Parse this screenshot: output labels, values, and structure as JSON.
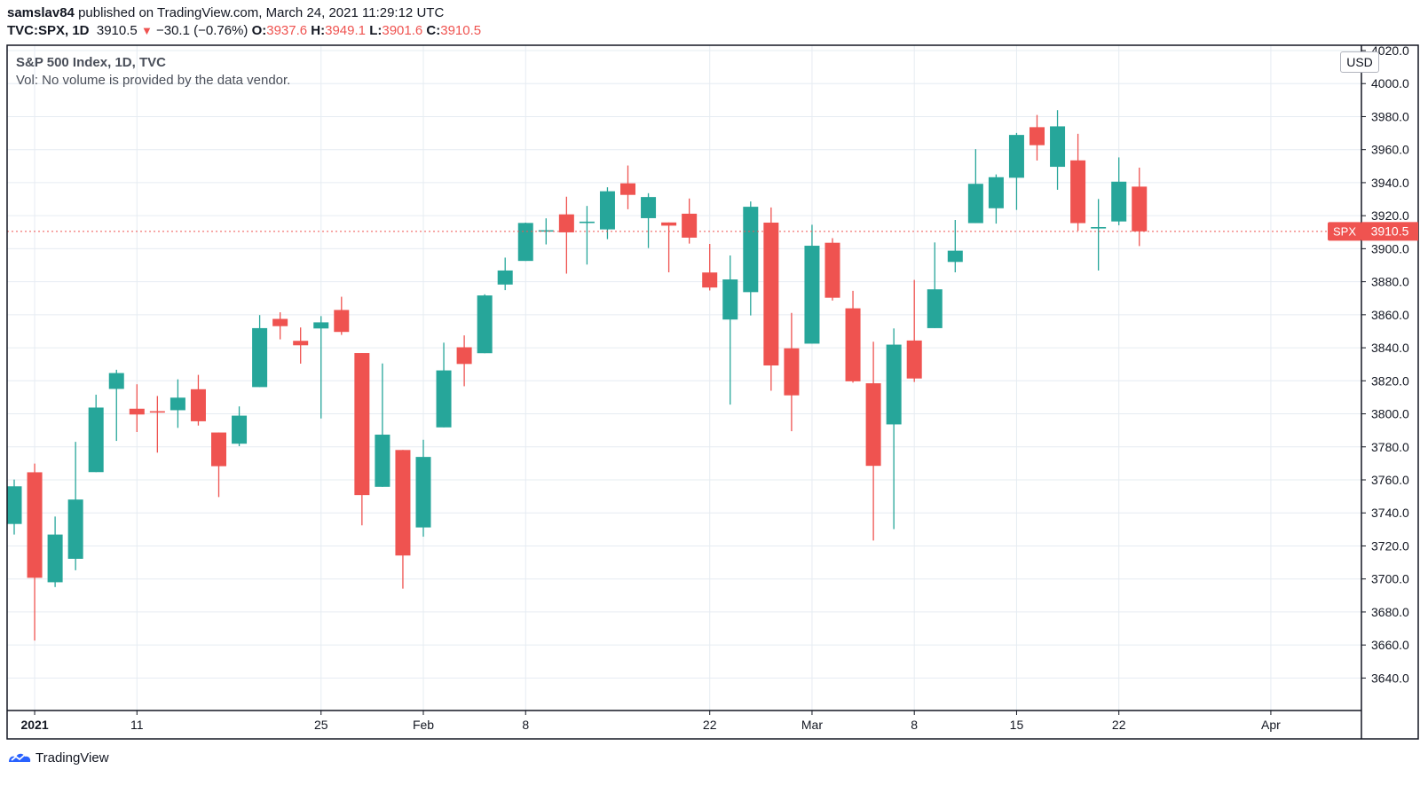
{
  "header": {
    "publisher": "samslav84",
    "published_text": "published on TradingView.com, March 24, 2021 11:29:12 UTC",
    "symbol": "TVC:SPX, 1D",
    "last": "3910.5",
    "change_icon": "down-triangle-icon",
    "change": "−30.1 (−0.76%)",
    "o_label": "O:",
    "o": "3937.6",
    "h_label": "H:",
    "h": "3949.1",
    "l_label": "L:",
    "l": "3901.6",
    "c_label": "C:",
    "c": "3910.5"
  },
  "legend": {
    "title": "S&P 500 Index, 1D, TVC",
    "volume_note": "Vol: No volume is provided by the data vendor."
  },
  "currency": "USD",
  "price_tag": {
    "symbol": "SPX",
    "value": "3910.5"
  },
  "branding": {
    "icon": "tradingview-logo-icon",
    "text": "TradingView"
  },
  "colors": {
    "up": "#26a69a",
    "down": "#ef5350",
    "grid": "#e6ecf2",
    "axis": "#131722",
    "last_line": "#ef5350"
  },
  "chart_data": {
    "type": "candlestick",
    "ylim": [
      3630,
      4020
    ],
    "y_ticks": [
      3640,
      3660,
      3680,
      3700,
      3720,
      3740,
      3760,
      3780,
      3800,
      3820,
      3840,
      3860,
      3880,
      3900,
      3920,
      3940,
      3960,
      3980,
      4000,
      4020
    ],
    "x_ticks": [
      {
        "label": "2021",
        "date": "2021-01-04",
        "bold": true
      },
      {
        "label": "11",
        "date": "2021-01-11"
      },
      {
        "label": "25",
        "date": "2021-01-25"
      },
      {
        "label": "Feb",
        "date": "2021-02-01"
      },
      {
        "label": "8",
        "date": "2021-02-08"
      },
      {
        "label": "22",
        "date": "2021-02-22"
      },
      {
        "label": "Mar",
        "date": "2021-03-01"
      },
      {
        "label": "8",
        "date": "2021-03-08"
      },
      {
        "label": "15",
        "date": "2021-03-15"
      },
      {
        "label": "22",
        "date": "2021-03-22"
      },
      {
        "label": "Apr",
        "date": "2021-04-01"
      }
    ],
    "last_price": 3910.5,
    "candles": [
      {
        "date": "2020-12-31",
        "open": 3733.3,
        "high": 3760.2,
        "low": 3726.9,
        "close": 3756.1
      },
      {
        "date": "2021-01-04",
        "open": 3764.6,
        "high": 3769.9,
        "low": 3662.7,
        "close": 3700.7
      },
      {
        "date": "2021-01-05",
        "open": 3698.0,
        "high": 3737.8,
        "low": 3695.1,
        "close": 3726.9
      },
      {
        "date": "2021-01-06",
        "open": 3712.2,
        "high": 3783.0,
        "low": 3705.3,
        "close": 3748.1
      },
      {
        "date": "2021-01-07",
        "open": 3764.7,
        "high": 3811.6,
        "low": 3764.7,
        "close": 3803.8
      },
      {
        "date": "2021-01-08",
        "open": 3815.1,
        "high": 3826.7,
        "low": 3783.6,
        "close": 3824.7
      },
      {
        "date": "2021-01-11",
        "open": 3803.1,
        "high": 3817.9,
        "low": 3789.0,
        "close": 3799.6
      },
      {
        "date": "2021-01-12",
        "open": 3801.6,
        "high": 3810.8,
        "low": 3776.5,
        "close": 3801.2
      },
      {
        "date": "2021-01-13",
        "open": 3802.2,
        "high": 3820.9,
        "low": 3791.5,
        "close": 3809.8
      },
      {
        "date": "2021-01-14",
        "open": 3814.9,
        "high": 3823.6,
        "low": 3792.9,
        "close": 3795.5
      },
      {
        "date": "2021-01-15",
        "open": 3788.7,
        "high": 3788.7,
        "low": 3749.6,
        "close": 3768.3
      },
      {
        "date": "2021-01-19",
        "open": 3781.9,
        "high": 3804.5,
        "low": 3780.4,
        "close": 3798.9
      },
      {
        "date": "2021-01-20",
        "open": 3816.2,
        "high": 3859.8,
        "low": 3816.2,
        "close": 3851.9
      },
      {
        "date": "2021-01-21",
        "open": 3857.5,
        "high": 3861.5,
        "low": 3845.1,
        "close": 3853.1
      },
      {
        "date": "2021-01-22",
        "open": 3844.2,
        "high": 3852.3,
        "low": 3830.4,
        "close": 3841.5
      },
      {
        "date": "2021-01-25",
        "open": 3851.7,
        "high": 3859.2,
        "low": 3797.2,
        "close": 3855.4
      },
      {
        "date": "2021-01-26",
        "open": 3862.9,
        "high": 3870.9,
        "low": 3847.8,
        "close": 3849.6
      },
      {
        "date": "2021-01-27",
        "open": 3836.8,
        "high": 3836.8,
        "low": 3732.5,
        "close": 3750.8
      },
      {
        "date": "2021-01-28",
        "open": 3755.8,
        "high": 3830.5,
        "low": 3755.8,
        "close": 3787.4
      },
      {
        "date": "2021-01-29",
        "open": 3778.1,
        "high": 3778.1,
        "low": 3694.1,
        "close": 3714.2
      },
      {
        "date": "2021-02-01",
        "open": 3731.2,
        "high": 3784.3,
        "low": 3725.6,
        "close": 3773.9
      },
      {
        "date": "2021-02-02",
        "open": 3791.8,
        "high": 3843.1,
        "low": 3791.8,
        "close": 3826.3
      },
      {
        "date": "2021-02-03",
        "open": 3840.3,
        "high": 3847.5,
        "low": 3816.7,
        "close": 3830.2
      },
      {
        "date": "2021-02-04",
        "open": 3836.7,
        "high": 3872.4,
        "low": 3836.7,
        "close": 3871.7
      },
      {
        "date": "2021-02-05",
        "open": 3878.3,
        "high": 3894.6,
        "low": 3874.9,
        "close": 3886.8
      },
      {
        "date": "2021-02-08",
        "open": 3892.6,
        "high": 3915.8,
        "low": 3892.6,
        "close": 3915.6
      },
      {
        "date": "2021-02-09",
        "open": 3910.5,
        "high": 3918.4,
        "low": 3902.6,
        "close": 3911.2
      },
      {
        "date": "2021-02-10",
        "open": 3920.8,
        "high": 3931.5,
        "low": 3884.9,
        "close": 3909.9
      },
      {
        "date": "2021-02-11",
        "open": 3916.4,
        "high": 3925.9,
        "low": 3890.4,
        "close": 3916.4
      },
      {
        "date": "2021-02-12",
        "open": 3911.7,
        "high": 3937.2,
        "low": 3905.8,
        "close": 3934.8
      },
      {
        "date": "2021-02-16",
        "open": 3939.6,
        "high": 3950.4,
        "low": 3923.9,
        "close": 3932.6
      },
      {
        "date": "2021-02-17",
        "open": 3918.5,
        "high": 3933.6,
        "low": 3900.4,
        "close": 3931.3
      },
      {
        "date": "2021-02-18",
        "open": 3915.9,
        "high": 3915.9,
        "low": 3885.7,
        "close": 3913.97
      },
      {
        "date": "2021-02-19",
        "open": 3921.2,
        "high": 3930.4,
        "low": 3903.1,
        "close": 3906.7
      },
      {
        "date": "2021-02-22",
        "open": 3885.6,
        "high": 3902.9,
        "low": 3874.7,
        "close": 3876.5
      },
      {
        "date": "2021-02-23",
        "open": 3857.1,
        "high": 3895.9,
        "low": 3805.6,
        "close": 3881.4
      },
      {
        "date": "2021-02-24",
        "open": 3873.7,
        "high": 3928.6,
        "low": 3859.6,
        "close": 3925.4
      },
      {
        "date": "2021-02-25",
        "open": 3915.8,
        "high": 3925.0,
        "low": 3814.0,
        "close": 3829.3
      },
      {
        "date": "2021-02-26",
        "open": 3839.7,
        "high": 3861.1,
        "low": 3789.5,
        "close": 3811.2
      },
      {
        "date": "2021-03-01",
        "open": 3842.5,
        "high": 3914.5,
        "low": 3842.5,
        "close": 3901.8
      },
      {
        "date": "2021-03-02",
        "open": 3903.6,
        "high": 3906.4,
        "low": 3868.6,
        "close": 3870.3
      },
      {
        "date": "2021-03-03",
        "open": 3863.9,
        "high": 3874.5,
        "low": 3818.9,
        "close": 3819.7
      },
      {
        "date": "2021-03-04",
        "open": 3818.5,
        "high": 3843.7,
        "low": 3723.3,
        "close": 3768.5
      },
      {
        "date": "2021-03-05",
        "open": 3793.6,
        "high": 3851.7,
        "low": 3730.2,
        "close": 3841.9
      },
      {
        "date": "2021-03-08",
        "open": 3844.4,
        "high": 3881.1,
        "low": 3819.3,
        "close": 3821.4
      },
      {
        "date": "2021-03-09",
        "open": 3851.9,
        "high": 3903.8,
        "low": 3851.9,
        "close": 3875.4
      },
      {
        "date": "2021-03-10",
        "open": 3891.99,
        "high": 3917.4,
        "low": 3885.7,
        "close": 3898.8
      },
      {
        "date": "2021-03-11",
        "open": 3915.5,
        "high": 3960.3,
        "low": 3915.5,
        "close": 3939.3
      },
      {
        "date": "2021-03-12",
        "open": 3924.5,
        "high": 3944.99,
        "low": 3915.2,
        "close": 3943.3
      },
      {
        "date": "2021-03-15",
        "open": 3942.96,
        "high": 3970.1,
        "low": 3923.5,
        "close": 3968.9
      },
      {
        "date": "2021-03-16",
        "open": 3973.6,
        "high": 3981.0,
        "low": 3953.4,
        "close": 3962.7
      },
      {
        "date": "2021-03-17",
        "open": 3949.6,
        "high": 3983.9,
        "low": 3935.7,
        "close": 3974.1
      },
      {
        "date": "2021-03-18",
        "open": 3953.5,
        "high": 3969.6,
        "low": 3910.9,
        "close": 3915.5
      },
      {
        "date": "2021-03-19",
        "open": 3913.1,
        "high": 3930.1,
        "low": 3886.8,
        "close": 3913.1
      },
      {
        "date": "2021-03-22",
        "open": 3916.5,
        "high": 3955.3,
        "low": 3914.2,
        "close": 3940.6
      },
      {
        "date": "2021-03-23",
        "open": 3937.6,
        "high": 3949.1,
        "low": 3901.6,
        "close": 3910.5
      }
    ]
  }
}
